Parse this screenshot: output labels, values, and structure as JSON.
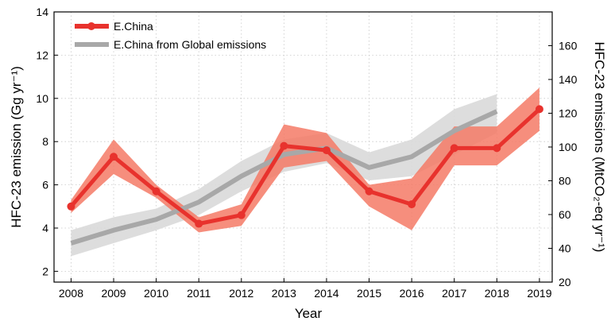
{
  "chart_data": {
    "type": "line",
    "title": "",
    "xlabel": "Year",
    "ylabel_left": "HFC-23 emission (Gg yr⁻¹)",
    "ylabel_right": "HFC-23 emissions (MtCO₂-eq yr⁻¹)",
    "x": [
      2008,
      2009,
      2010,
      2011,
      2012,
      2013,
      2014,
      2015,
      2016,
      2017,
      2018,
      2019
    ],
    "xlim": [
      2007.6,
      2019.3
    ],
    "ylim_left": [
      1.5,
      14
    ],
    "ylim_right": [
      20,
      180
    ],
    "yticks_left": [
      2,
      4,
      6,
      8,
      10,
      12,
      14
    ],
    "yticks_right": [
      20,
      40,
      60,
      80,
      100,
      120,
      140,
      160
    ],
    "grid": true,
    "legend_position": "top-left",
    "series": [
      {
        "name": "E.China",
        "color": "#e8322d",
        "band_color": "#f57a66",
        "marker": "circle",
        "x": [
          2008,
          2009,
          2010,
          2011,
          2012,
          2013,
          2014,
          2015,
          2016,
          2017,
          2018,
          2019
        ],
        "values": [
          5.0,
          7.3,
          5.7,
          4.2,
          4.6,
          7.8,
          7.6,
          5.7,
          5.1,
          7.7,
          7.7,
          9.5
        ],
        "lower": [
          4.7,
          6.5,
          5.4,
          3.8,
          4.1,
          6.8,
          7.1,
          5.0,
          3.9,
          6.9,
          6.9,
          8.5
        ],
        "upper": [
          5.3,
          8.1,
          6.0,
          4.5,
          5.1,
          8.8,
          8.4,
          6.0,
          6.3,
          8.7,
          8.7,
          10.5
        ]
      },
      {
        "name": "E.China from Global emissions",
        "color": "#a8a8a8",
        "band_color": "#d9d9d9",
        "marker": "none",
        "x": [
          2008,
          2009,
          2010,
          2011,
          2012,
          2013,
          2014,
          2015,
          2016,
          2017,
          2018
        ],
        "values": [
          3.3,
          3.9,
          4.4,
          5.2,
          6.4,
          7.4,
          7.7,
          6.8,
          7.3,
          8.5,
          9.4
        ],
        "lower": [
          2.7,
          3.3,
          3.9,
          4.6,
          5.7,
          6.6,
          7.0,
          6.2,
          6.4,
          7.4,
          8.4
        ],
        "upper": [
          3.9,
          4.5,
          4.9,
          5.8,
          7.1,
          8.1,
          8.4,
          7.5,
          8.1,
          9.5,
          10.2
        ]
      }
    ]
  }
}
